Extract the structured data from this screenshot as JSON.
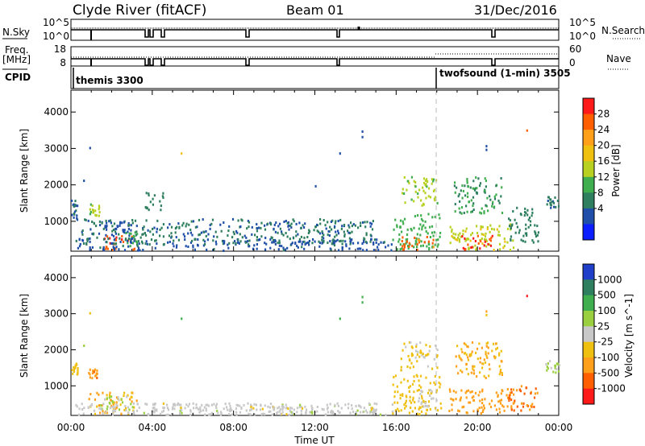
{
  "header": {
    "title": "Clyde River (fitACF)",
    "beam": "Beam 01",
    "date": "31/Dec/2016"
  },
  "top_panels": {
    "nsky_label": "N.Sky",
    "nsky_ticks": [
      "10^5",
      "10^0"
    ],
    "nsearch_label": "N.Search",
    "nsearch_ticks": [
      "10^5",
      "10^0"
    ],
    "freq_label_line1": "Freq.",
    "freq_label_line2": "[MHz]",
    "freq_ticks": [
      "18",
      "8"
    ],
    "nave_label": "Nave",
    "nave_ticks": [
      "60",
      "0"
    ],
    "cpid_label": "CPID",
    "cpid_modes": [
      {
        "name": "themis 3300",
        "start": 0
      },
      {
        "name": "twofsound (1-min) 3505",
        "start": 18.0
      }
    ]
  },
  "x_axis": {
    "label": "Time UT",
    "ticks": [
      "00:00",
      "04:00",
      "08:00",
      "12:00",
      "16:00",
      "20:00",
      "00:00"
    ],
    "range_hours": [
      0,
      24
    ]
  },
  "chart_data": [
    {
      "type": "heatmap",
      "title": "Power",
      "ylabel": "Slant Range [km]",
      "yticks": [
        "4000",
        "3000",
        "2000",
        "1000"
      ],
      "ylim": [
        180,
        4600
      ],
      "colorbar_label": "Power [dB]",
      "colorbar_ticks": [
        "28",
        "24",
        "20",
        "16",
        "12",
        "8",
        "4"
      ],
      "colorbar_colors": [
        "#ff1a1a",
        "#ff5f00",
        "#ff9f1a",
        "#f0c010",
        "#b8d020",
        "#3fae4f",
        "#2e7f5f",
        "#1f4fa8",
        "#0a1eff"
      ],
      "colorbar_range": [
        0,
        30
      ],
      "scatter_regions": [
        {
          "t0": 0.0,
          "t1": 0.3,
          "r0": 1000,
          "r1": 1600,
          "value": 6
        },
        {
          "t0": 0.9,
          "t1": 1.4,
          "r0": 1100,
          "r1": 1450,
          "value": 14
        },
        {
          "t0": 1.3,
          "t1": 3.0,
          "r0": 500,
          "r1": 1000,
          "value": 5
        },
        {
          "t0": 1.5,
          "t1": 3.1,
          "r0": 200,
          "r1": 600,
          "value": 26
        },
        {
          "t0": 2.6,
          "t1": 3.3,
          "r0": 300,
          "r1": 700,
          "value": 10
        },
        {
          "t0": 0.2,
          "t1": 15.8,
          "r0": 180,
          "r1": 500,
          "value": 6
        },
        {
          "t0": 0.5,
          "t1": 15.0,
          "r0": 350,
          "r1": 1050,
          "value": 7
        },
        {
          "t0": 15.8,
          "t1": 18.2,
          "r0": 200,
          "r1": 1200,
          "value": 12
        },
        {
          "t0": 16.2,
          "t1": 17.8,
          "r0": 200,
          "r1": 600,
          "value": 24
        },
        {
          "t0": 16.2,
          "t1": 18.0,
          "r0": 1400,
          "r1": 2200,
          "value": 14
        },
        {
          "t0": 18.5,
          "t1": 21.8,
          "r0": 200,
          "r1": 900,
          "value": 16
        },
        {
          "t0": 19.2,
          "t1": 20.8,
          "r0": 200,
          "r1": 600,
          "value": 27
        },
        {
          "t0": 18.8,
          "t1": 21.2,
          "r0": 1200,
          "r1": 2200,
          "value": 10
        },
        {
          "t0": 21.5,
          "t1": 23.0,
          "r0": 400,
          "r1": 1400,
          "value": 8
        },
        {
          "t0": 23.3,
          "t1": 24.0,
          "r0": 1350,
          "r1": 1700,
          "value": 7
        },
        {
          "t0": 3.6,
          "t1": 4.6,
          "r0": 1300,
          "r1": 1800,
          "value": 8
        }
      ],
      "isolated_points": [
        {
          "t": 0.9,
          "r": 3000,
          "value": 6
        },
        {
          "t": 0.6,
          "r": 2100,
          "value": 6
        },
        {
          "t": 5.4,
          "r": 2850,
          "value": 18
        },
        {
          "t": 14.3,
          "r": 3450,
          "value": 6
        },
        {
          "t": 14.3,
          "r": 3300,
          "value": 6
        },
        {
          "t": 13.2,
          "r": 2850,
          "value": 6
        },
        {
          "t": 20.4,
          "r": 3050,
          "value": 6
        },
        {
          "t": 20.4,
          "r": 2950,
          "value": 6
        },
        {
          "t": 22.4,
          "r": 3480,
          "value": 26
        },
        {
          "t": 12.0,
          "r": 1950,
          "value": 6
        }
      ]
    },
    {
      "type": "heatmap",
      "title": "Velocity",
      "ylabel": "Slant Range [km]",
      "yticks": [
        "4000",
        "3000",
        "2000",
        "1000"
      ],
      "ylim": [
        180,
        4600
      ],
      "colorbar_label": "Velocity [m s^-1]",
      "colorbar_ticks": [
        "1000",
        "500",
        "100",
        "25",
        "-25",
        "-100",
        "-500",
        "-1000"
      ],
      "colorbar_colors": [
        "#1f3fc8",
        "#2e7f5f",
        "#3fae4f",
        "#9ad040",
        "#c8c8c8",
        "#f0c010",
        "#ff9f1a",
        "#ff5f00",
        "#ff1a1a"
      ],
      "colorbar_range": [
        -1200,
        1200
      ],
      "scatter_regions": [
        {
          "t0": 0.0,
          "t1": 0.3,
          "r0": 1300,
          "r1": 1600,
          "value": -300
        },
        {
          "t0": 0.8,
          "t1": 1.3,
          "r0": 1200,
          "r1": 1450,
          "value": -600
        },
        {
          "t0": 0.8,
          "t1": 3.2,
          "r0": 200,
          "r1": 800,
          "value": -400
        },
        {
          "t0": 1.3,
          "t1": 3.0,
          "r0": 300,
          "r1": 700,
          "value": 150
        },
        {
          "t0": 0.2,
          "t1": 15.8,
          "r0": 180,
          "r1": 500,
          "value": 60
        },
        {
          "t0": 3.5,
          "t1": 15.0,
          "r0": 180,
          "r1": 500,
          "value": -60
        },
        {
          "t0": 15.8,
          "t1": 18.2,
          "r0": 200,
          "r1": 1300,
          "value": -300
        },
        {
          "t0": 16.2,
          "t1": 18.0,
          "r0": 1400,
          "r1": 2200,
          "value": -150
        },
        {
          "t0": 17.0,
          "t1": 18.0,
          "r0": 400,
          "r1": 900,
          "value": 0
        },
        {
          "t0": 18.5,
          "t1": 21.8,
          "r0": 200,
          "r1": 900,
          "value": -500
        },
        {
          "t0": 18.8,
          "t1": 21.2,
          "r0": 1200,
          "r1": 2200,
          "value": -400
        },
        {
          "t0": 21.5,
          "t1": 23.0,
          "r0": 300,
          "r1": 1000,
          "value": -700
        },
        {
          "t0": 23.3,
          "t1": 24.0,
          "r0": 1350,
          "r1": 1700,
          "value": 200
        }
      ],
      "isolated_points": [
        {
          "t": 0.9,
          "r": 3000,
          "value": -150
        },
        {
          "t": 0.6,
          "r": 2100,
          "value": 200
        },
        {
          "t": 5.4,
          "r": 2850,
          "value": 600
        },
        {
          "t": 14.3,
          "r": 3450,
          "value": 600
        },
        {
          "t": 14.3,
          "r": 3300,
          "value": 600
        },
        {
          "t": 13.2,
          "r": 2850,
          "value": 600
        },
        {
          "t": 20.4,
          "r": 3050,
          "value": -600
        },
        {
          "t": 20.4,
          "r": 2950,
          "value": -150
        },
        {
          "t": 22.4,
          "r": 3480,
          "value": -1000
        }
      ]
    }
  ]
}
